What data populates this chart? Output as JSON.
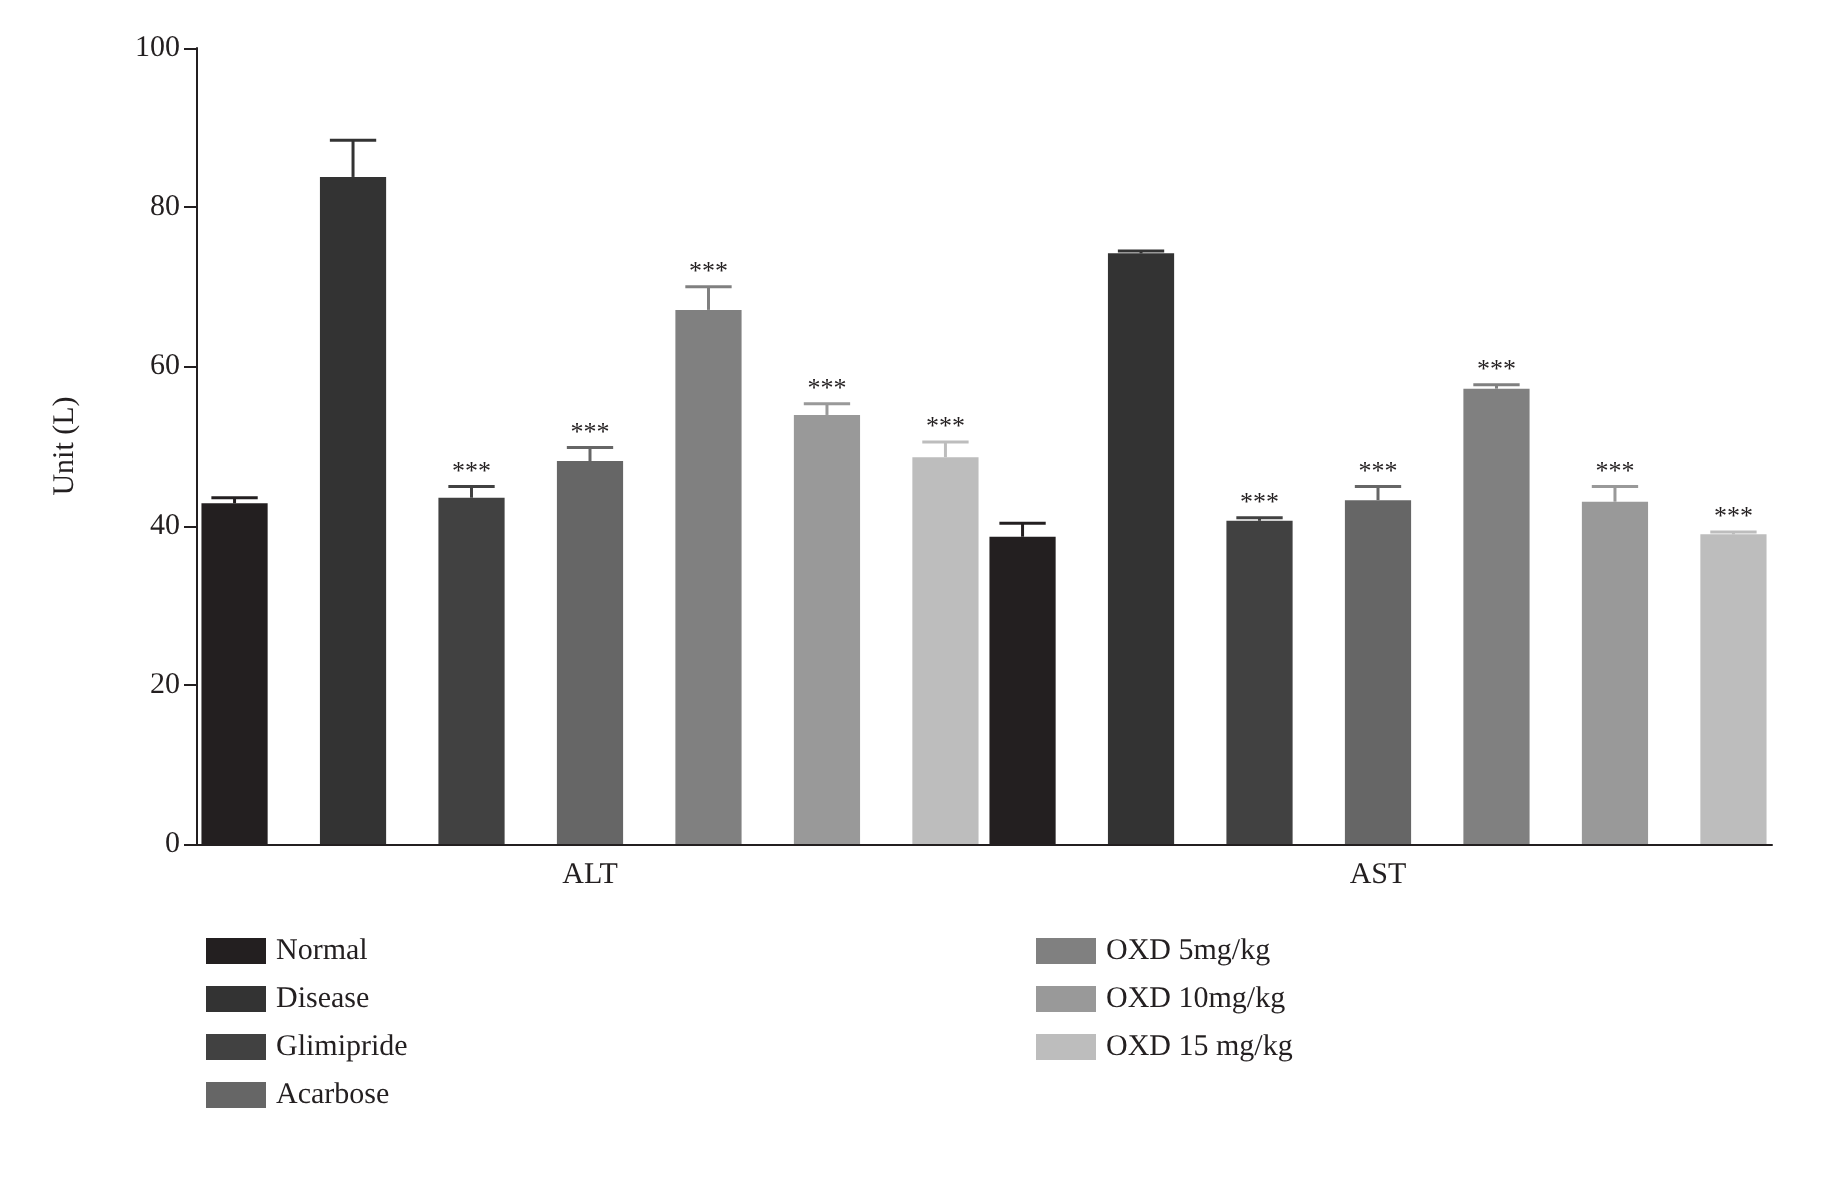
{
  "chart_data": {
    "type": "bar",
    "ylabel": "Unit (L)",
    "categories": [
      "ALT",
      "AST"
    ],
    "ylim": [
      0,
      100
    ],
    "yticks": [
      0,
      20,
      40,
      60,
      80,
      100
    ],
    "grid": false,
    "legend": "bottom",
    "series": [
      {
        "name": "Normal",
        "color": "#231f20",
        "values": [
          42.8,
          38.6
        ],
        "errors": [
          0.7,
          1.7
        ]
      },
      {
        "name": "Disease",
        "color": "#333333",
        "values": [
          83.8,
          74.2
        ],
        "errors": [
          4.6,
          0.3
        ]
      },
      {
        "name": "Glimipride",
        "color": "#414141",
        "values": [
          43.5,
          40.6
        ],
        "errors": [
          1.4,
          0.4
        ],
        "value_labels": [
          "***",
          "***"
        ]
      },
      {
        "name": "Acarbose",
        "color": "#666666",
        "values": [
          48.1,
          43.2
        ],
        "errors": [
          1.7,
          1.7
        ],
        "value_labels": [
          "***",
          "***"
        ]
      },
      {
        "name": "OXD 5mg/kg",
        "color": "#808080",
        "values": [
          67.1,
          57.2
        ],
        "errors": [
          2.9,
          0.5
        ],
        "value_labels": [
          "***",
          "***"
        ]
      },
      {
        "name": "OXD 10mg/kg",
        "color": "#999999",
        "values": [
          53.9,
          43.0
        ],
        "errors": [
          1.4,
          1.9
        ],
        "value_labels": [
          "***",
          "***"
        ]
      },
      {
        "name": "OXD 15 mg/kg",
        "color": "#bdbdbd",
        "values": [
          48.6,
          38.9
        ],
        "errors": [
          1.9,
          0.3
        ],
        "value_labels": [
          "***",
          "***"
        ]
      }
    ]
  }
}
